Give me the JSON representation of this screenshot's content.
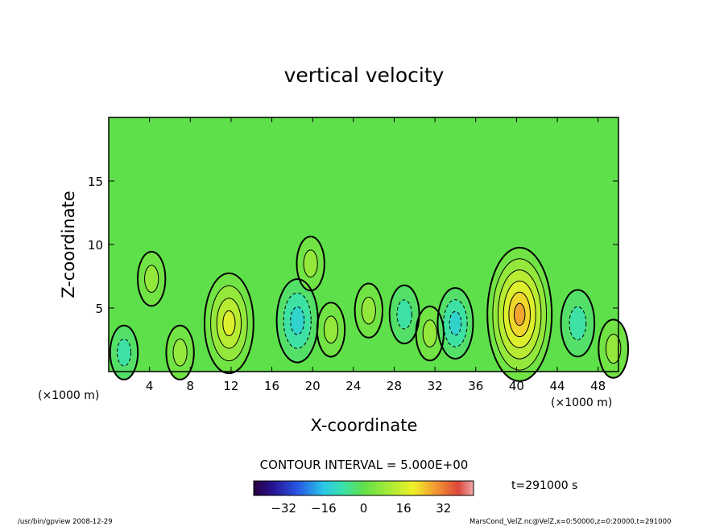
{
  "chart_data": {
    "type": "heatmap",
    "title": "vertical velocity",
    "xlabel": "X-coordinate",
    "ylabel": "Z-coordinate",
    "x_unit_left": "(×1000 m)",
    "x_unit_right": "(×1000 m)",
    "xlim": [
      0,
      50
    ],
    "ylim": [
      0,
      20
    ],
    "x_ticks": [
      "4",
      "8",
      "12",
      "16",
      "20",
      "24",
      "28",
      "32",
      "36",
      "40",
      "44",
      "48"
    ],
    "x_tick_values": [
      4,
      8,
      12,
      16,
      20,
      24,
      28,
      32,
      36,
      40,
      44,
      48
    ],
    "y_ticks": [
      "5",
      "10",
      "15"
    ],
    "y_tick_values": [
      5,
      10,
      15
    ],
    "contour_interval_label": "CONTOUR INTERVAL = 5.000E+00",
    "colorbar": {
      "min": -44,
      "max": 44,
      "ticks": [
        "−32",
        "−16",
        "0",
        "16",
        "32"
      ],
      "tick_values": [
        -32,
        -16,
        0,
        16,
        32
      ]
    },
    "time_label": "t=291000 s",
    "features": [
      {
        "x": 11.8,
        "z": 3.8,
        "value": 17
      },
      {
        "x": 4.2,
        "z": 7.3,
        "value": 6
      },
      {
        "x": 7.0,
        "z": 1.5,
        "value": 6
      },
      {
        "x": 18.5,
        "z": 4.0,
        "value": -13
      },
      {
        "x": 19.8,
        "z": 8.5,
        "value": 6
      },
      {
        "x": 21.8,
        "z": 3.3,
        "value": 6
      },
      {
        "x": 25.5,
        "z": 4.8,
        "value": 6
      },
      {
        "x": 29.0,
        "z": 4.5,
        "value": -7
      },
      {
        "x": 31.5,
        "z": 3.0,
        "value": 6
      },
      {
        "x": 34.0,
        "z": 3.8,
        "value": -10
      },
      {
        "x": 40.3,
        "z": 4.5,
        "value": 25
      },
      {
        "x": 46.0,
        "z": 3.8,
        "value": -9
      },
      {
        "x": 1.5,
        "z": 1.5,
        "value": -6
      },
      {
        "x": 49.5,
        "z": 1.8,
        "value": 7
      }
    ]
  },
  "footer": {
    "left": "/usr/bin/gpview  2008-12-29",
    "right": "MarsCond_VelZ.nc@VelZ,x=0:50000,z=0:20000,t=291000"
  }
}
